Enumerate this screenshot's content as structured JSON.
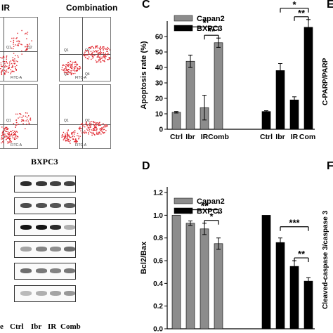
{
  "flow": {
    "columns": [
      {
        "label": "IR"
      },
      {
        "label": "Combination"
      }
    ],
    "quadrant_labels": [
      "Q1",
      "Q2",
      "Q3",
      "Q4"
    ],
    "axis_label": "FITC-A"
  },
  "panel_letters": {
    "C": "C",
    "D": "D",
    "E": "E",
    "F": "F"
  },
  "blot": {
    "title": "BXPC3",
    "lanes": [
      "Ctrl",
      "Ibr",
      "IR",
      "Comb"
    ],
    "bands": [
      [
        0.85,
        0.8,
        0.75,
        0.75
      ],
      [
        0.7,
        0.68,
        0.66,
        0.64
      ],
      [
        0.95,
        0.95,
        0.85,
        0.25
      ],
      [
        0.3,
        0.45,
        0.4,
        0.55
      ],
      [
        0.55,
        0.5,
        0.45,
        0.5
      ],
      [
        0.2,
        0.25,
        0.3,
        0.35
      ]
    ]
  },
  "side_labels": {
    "E": "C-PARP/PARP",
    "F": "Cleaved-caspase 3/caspase 3"
  },
  "chart_data": [
    {
      "type": "bar",
      "panel": "C",
      "categories": [
        "Ctrl",
        "Ibr",
        "IR",
        "Comb"
      ],
      "tick_labels": [
        "Ctrl",
        "Ibr",
        "IR",
        "Comb",
        "Ctrl",
        "Ibr",
        "IR",
        "Coml"
      ],
      "series": [
        {
          "name": "Capan2",
          "values": [
            11,
            44,
            14,
            56
          ],
          "errors": [
            0.5,
            4,
            8,
            3
          ],
          "color": "#8c8c8c"
        },
        {
          "name": "BXPC3",
          "values": [
            11.5,
            38,
            19,
            66
          ],
          "errors": [
            0.5,
            4.5,
            2,
            5
          ],
          "color": "#000000"
        }
      ],
      "ylabel": "Apoptosis rate (%)",
      "ylim": [
        0,
        70
      ],
      "yticks": [
        0,
        10,
        20,
        30,
        40,
        50,
        60
      ],
      "significance": [
        {
          "series": "Capan2",
          "from": "Ibr",
          "to": "Comb",
          "label": "*"
        },
        {
          "series": "Capan2",
          "from": "IR",
          "to": "Comb",
          "label": "**"
        },
        {
          "series": "BXPC3",
          "from": "Ibr",
          "to": "Comb",
          "label": "*"
        },
        {
          "series": "BXPC3",
          "from": "IR",
          "to": "Comb",
          "label": "**"
        }
      ],
      "legend_position": "top-left"
    },
    {
      "type": "bar",
      "panel": "D",
      "categories": [
        "Ctrl",
        "Ibr",
        "IR",
        "Comb"
      ],
      "tick_labels": [],
      "series": [
        {
          "name": "Capan2",
          "values": [
            1.0,
            0.93,
            0.88,
            0.75
          ],
          "errors": [
            0,
            0.02,
            0.05,
            0.05
          ],
          "color": "#8c8c8c"
        },
        {
          "name": "BXPC3",
          "values": [
            1.0,
            0.76,
            0.55,
            0.42
          ],
          "errors": [
            0,
            0.04,
            0.05,
            0.03
          ],
          "color": "#000000"
        }
      ],
      "ylabel": "Bcl2/Bax",
      "ylim": [
        0,
        1.25
      ],
      "yticks": [
        0.0,
        0.2,
        0.4,
        0.6,
        0.8,
        1.0,
        1.2
      ],
      "significance": [
        {
          "series": "Capan2",
          "from": "Ibr",
          "to": "Comb",
          "label": "**"
        },
        {
          "series": "Capan2",
          "from": "IR",
          "to": "Comb",
          "label": "*"
        },
        {
          "series": "BXPC3",
          "from": "Ibr",
          "to": "Comb",
          "label": "***"
        },
        {
          "series": "BXPC3",
          "from": "IR",
          "to": "Comb",
          "label": "**"
        }
      ],
      "legend_position": "top-left"
    }
  ]
}
